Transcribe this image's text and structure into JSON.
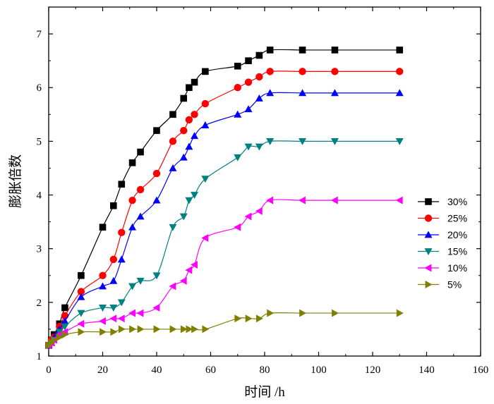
{
  "chart_data": {
    "type": "line",
    "title": "",
    "xlabel": "时间  /h",
    "ylabel": "膨胀倍数",
    "xlim": [
      0,
      160
    ],
    "ylim": [
      1,
      7.5
    ],
    "xticks": [
      0,
      20,
      40,
      60,
      80,
      100,
      120,
      140,
      160
    ],
    "yticks": [
      1,
      2,
      3,
      4,
      5,
      6,
      7
    ],
    "grid": false,
    "legend_position": "right",
    "series": [
      {
        "name": "30%",
        "color": "#000000",
        "marker": "square",
        "x": [
          0,
          1,
          2,
          4,
          6,
          12,
          20,
          24,
          27,
          31,
          34,
          40,
          46,
          50,
          52,
          54,
          58,
          70,
          74,
          78,
          82,
          94,
          106,
          130
        ],
        "y": [
          1.2,
          1.3,
          1.4,
          1.6,
          1.9,
          2.5,
          3.4,
          3.8,
          4.2,
          4.6,
          4.8,
          5.2,
          5.5,
          5.8,
          6.0,
          6.1,
          6.3,
          6.4,
          6.5,
          6.6,
          6.7,
          6.7,
          6.7,
          6.7
        ]
      },
      {
        "name": "25%",
        "color": "#ff0000",
        "marker": "circle",
        "x": [
          0,
          1,
          2,
          4,
          6,
          12,
          20,
          24,
          27,
          31,
          34,
          40,
          46,
          50,
          52,
          54,
          58,
          70,
          74,
          78,
          82,
          94,
          106,
          130
        ],
        "y": [
          1.2,
          1.3,
          1.35,
          1.55,
          1.75,
          2.2,
          2.5,
          2.8,
          3.3,
          3.9,
          4.1,
          4.4,
          5.0,
          5.2,
          5.4,
          5.5,
          5.7,
          6.0,
          6.1,
          6.2,
          6.3,
          6.3,
          6.3,
          6.3
        ]
      },
      {
        "name": "20%",
        "color": "#0000ff",
        "marker": "triangle-up",
        "x": [
          0,
          1,
          2,
          4,
          6,
          12,
          20,
          24,
          27,
          31,
          34,
          40,
          46,
          50,
          52,
          54,
          58,
          70,
          74,
          78,
          82,
          94,
          106,
          130
        ],
        "y": [
          1.2,
          1.25,
          1.35,
          1.5,
          1.65,
          2.1,
          2.3,
          2.4,
          2.8,
          3.4,
          3.6,
          3.9,
          4.5,
          4.7,
          4.9,
          5.1,
          5.3,
          5.5,
          5.6,
          5.8,
          5.9,
          5.9,
          5.9,
          5.9
        ]
      },
      {
        "name": "15%",
        "color": "#008080",
        "marker": "triangle-down",
        "x": [
          0,
          1,
          2,
          4,
          6,
          12,
          20,
          24,
          27,
          31,
          34,
          40,
          46,
          50,
          52,
          54,
          58,
          70,
          74,
          78,
          82,
          94,
          106,
          130
        ],
        "y": [
          1.2,
          1.25,
          1.3,
          1.45,
          1.55,
          1.8,
          1.9,
          1.9,
          2.0,
          2.3,
          2.4,
          2.5,
          3.4,
          3.6,
          3.9,
          4.0,
          4.3,
          4.7,
          4.9,
          4.9,
          5.0,
          5.0,
          5.0,
          5.0
        ]
      },
      {
        "name": "10%",
        "color": "#ff00ff",
        "marker": "triangle-left",
        "x": [
          0,
          1,
          2,
          4,
          6,
          12,
          20,
          24,
          27,
          31,
          34,
          40,
          46,
          50,
          52,
          54,
          58,
          70,
          74,
          78,
          82,
          94,
          106,
          130
        ],
        "y": [
          1.2,
          1.25,
          1.3,
          1.4,
          1.45,
          1.6,
          1.65,
          1.7,
          1.7,
          1.8,
          1.8,
          1.9,
          2.3,
          2.4,
          2.6,
          2.7,
          3.2,
          3.4,
          3.6,
          3.7,
          3.9,
          3.9,
          3.9,
          3.9
        ]
      },
      {
        "name": "5%",
        "color": "#808000",
        "marker": "triangle-right",
        "x": [
          0,
          1,
          2,
          4,
          6,
          12,
          20,
          24,
          27,
          31,
          34,
          40,
          46,
          50,
          52,
          54,
          58,
          70,
          74,
          78,
          82,
          94,
          106,
          130
        ],
        "y": [
          1.2,
          1.25,
          1.3,
          1.35,
          1.4,
          1.45,
          1.45,
          1.45,
          1.5,
          1.5,
          1.5,
          1.5,
          1.5,
          1.5,
          1.5,
          1.5,
          1.5,
          1.7,
          1.7,
          1.7,
          1.8,
          1.8,
          1.8,
          1.8
        ]
      }
    ]
  }
}
